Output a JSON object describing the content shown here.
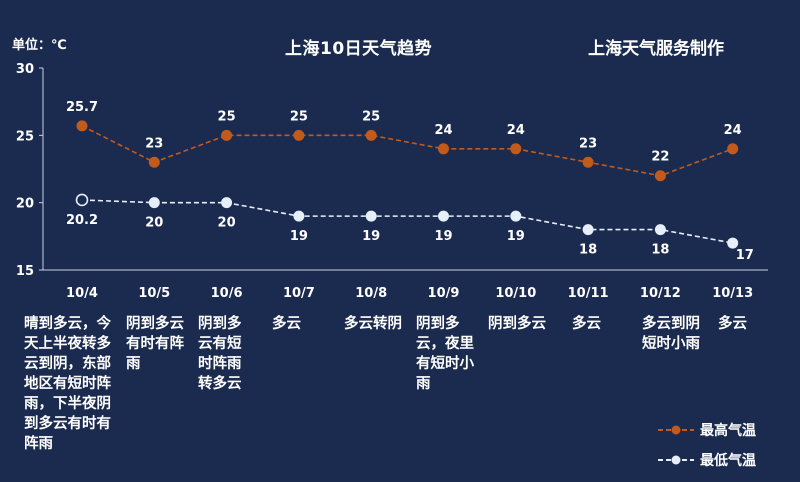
{
  "chart_data": {
    "type": "line",
    "title": "上海10日天气趋势",
    "credit": "上海天气服务制作",
    "ylabel": "单位：℃",
    "ylim": [
      15,
      30
    ],
    "yticks": [
      15,
      20,
      25,
      30
    ],
    "grid": false,
    "legend_position": "bottom-right",
    "categories": [
      "10/4",
      "10/5",
      "10/6",
      "10/7",
      "10/8",
      "10/9",
      "10/10",
      "10/11",
      "10/12",
      "10/13"
    ],
    "series": [
      {
        "name": "最高气温",
        "color": "#c25a1c",
        "values": [
          25.7,
          23,
          25,
          25,
          25,
          24,
          24,
          23,
          22,
          24
        ]
      },
      {
        "name": "最低气温",
        "color": "#e6eef9",
        "values": [
          20.2,
          20,
          20,
          19,
          19,
          19,
          19,
          18,
          18,
          17
        ]
      }
    ],
    "weather": [
      "晴到多云，今天上半夜转多云到阴，东部地区有短时阵雨，下半夜阴到多云有时有阵雨",
      "阴到多云有时有阵雨",
      "阴到多云有短时阵雨转多云",
      "多云",
      "多云转阴",
      "阴到多云，夜里有短时小雨",
      "阴到多云",
      "多云",
      "多云到阴短时小雨",
      "多云"
    ]
  }
}
